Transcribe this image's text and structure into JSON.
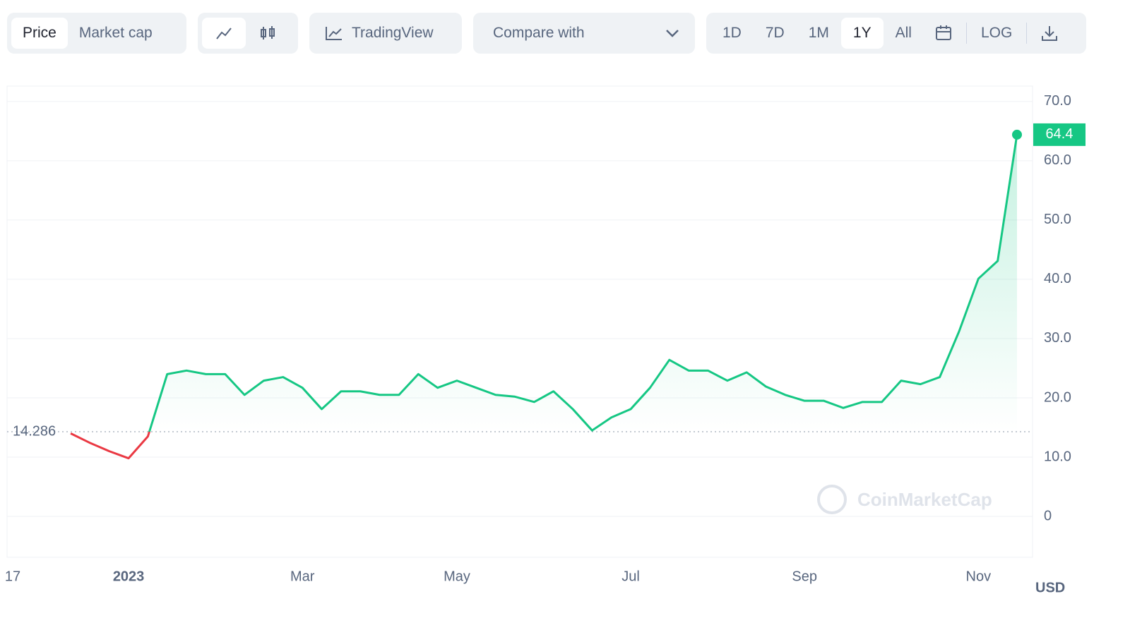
{
  "toolbar": {
    "price": "Price",
    "market_cap": "Market cap",
    "tradingview": "TradingView",
    "compare": "Compare with",
    "ranges": [
      "1D",
      "7D",
      "1M",
      "1Y",
      "All"
    ],
    "log": "LOG"
  },
  "chart_data": {
    "type": "line",
    "categories": [
      "17",
      null,
      null,
      null,
      null,
      null,
      "2023",
      null,
      null,
      null,
      null,
      null,
      null,
      null,
      null,
      "Mar",
      null,
      null,
      null,
      null,
      null,
      null,
      null,
      "May",
      null,
      null,
      null,
      null,
      null,
      null,
      null,
      null,
      "Jul",
      null,
      null,
      null,
      null,
      null,
      null,
      null,
      null,
      "Sep",
      null,
      null,
      null,
      null,
      null,
      null,
      null,
      null,
      "Nov",
      null,
      null
    ],
    "values": [
      null,
      null,
      null,
      14.0,
      12.4,
      11.0,
      9.8,
      13.5,
      24.0,
      24.6,
      24.0,
      24.0,
      20.5,
      22.9,
      23.5,
      21.7,
      18.1,
      21.1,
      21.1,
      20.5,
      20.5,
      24.0,
      21.7,
      22.9,
      21.7,
      20.5,
      20.2,
      19.3,
      21.1,
      18.1,
      14.5,
      16.7,
      18.1,
      21.7,
      26.4,
      24.6,
      24.6,
      22.9,
      24.3,
      21.9,
      20.5,
      19.5,
      19.5,
      18.3,
      19.3,
      19.3,
      22.9,
      22.3,
      23.5,
      31.2,
      40.1,
      43.1,
      64.4
    ],
    "up_color": "#16c784",
    "down_color": "#ea3943",
    "baseline": 14.286,
    "ylim": [
      -6.9,
      72.6
    ],
    "yticks": [
      0,
      {
        "value": 10,
        "label": "10.0"
      },
      {
        "value": 20,
        "label": "20.0"
      },
      {
        "value": 30,
        "label": "30.0"
      },
      {
        "value": 40,
        "label": "40.0"
      },
      {
        "value": 50,
        "label": "50.0"
      },
      {
        "value": 60,
        "label": "60.0"
      },
      {
        "value": 70,
        "label": "70.0"
      }
    ],
    "grid": true,
    "currency": "USD",
    "watermark": "CoinMarketCap"
  }
}
